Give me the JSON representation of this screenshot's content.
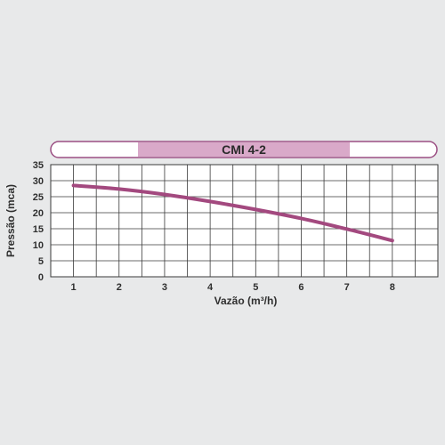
{
  "chart_data": {
    "type": "line",
    "title": "CMI 4-2",
    "xlabel": "Vazão (m³/h)",
    "ylabel": "Pressão (mca)",
    "xlim": [
      0.5,
      9
    ],
    "ylim": [
      0,
      35
    ],
    "x_ticks": [
      1,
      2,
      3,
      4,
      5,
      6,
      7,
      8
    ],
    "y_ticks": [
      0,
      5,
      10,
      15,
      20,
      25,
      30,
      35
    ],
    "x_gridlines": [
      1,
      1.5,
      2,
      2.5,
      3,
      3.5,
      4,
      4.5,
      5,
      5.5,
      6,
      6.5,
      7,
      7.5,
      8,
      8.5
    ],
    "grid": true,
    "legend": "none",
    "colors": {
      "series": "#a3497f",
      "title_band": "#d9a9c9",
      "title_border": "#9b4f83",
      "grid": "#3a3a3a",
      "text": "#2f2f2f"
    },
    "series": [
      {
        "x": [
          1,
          2,
          3,
          4,
          5,
          6,
          7,
          8
        ],
        "y": [
          28.5,
          27.4,
          25.7,
          23.5,
          21.0,
          18.2,
          14.9,
          11.3
        ]
      }
    ]
  }
}
